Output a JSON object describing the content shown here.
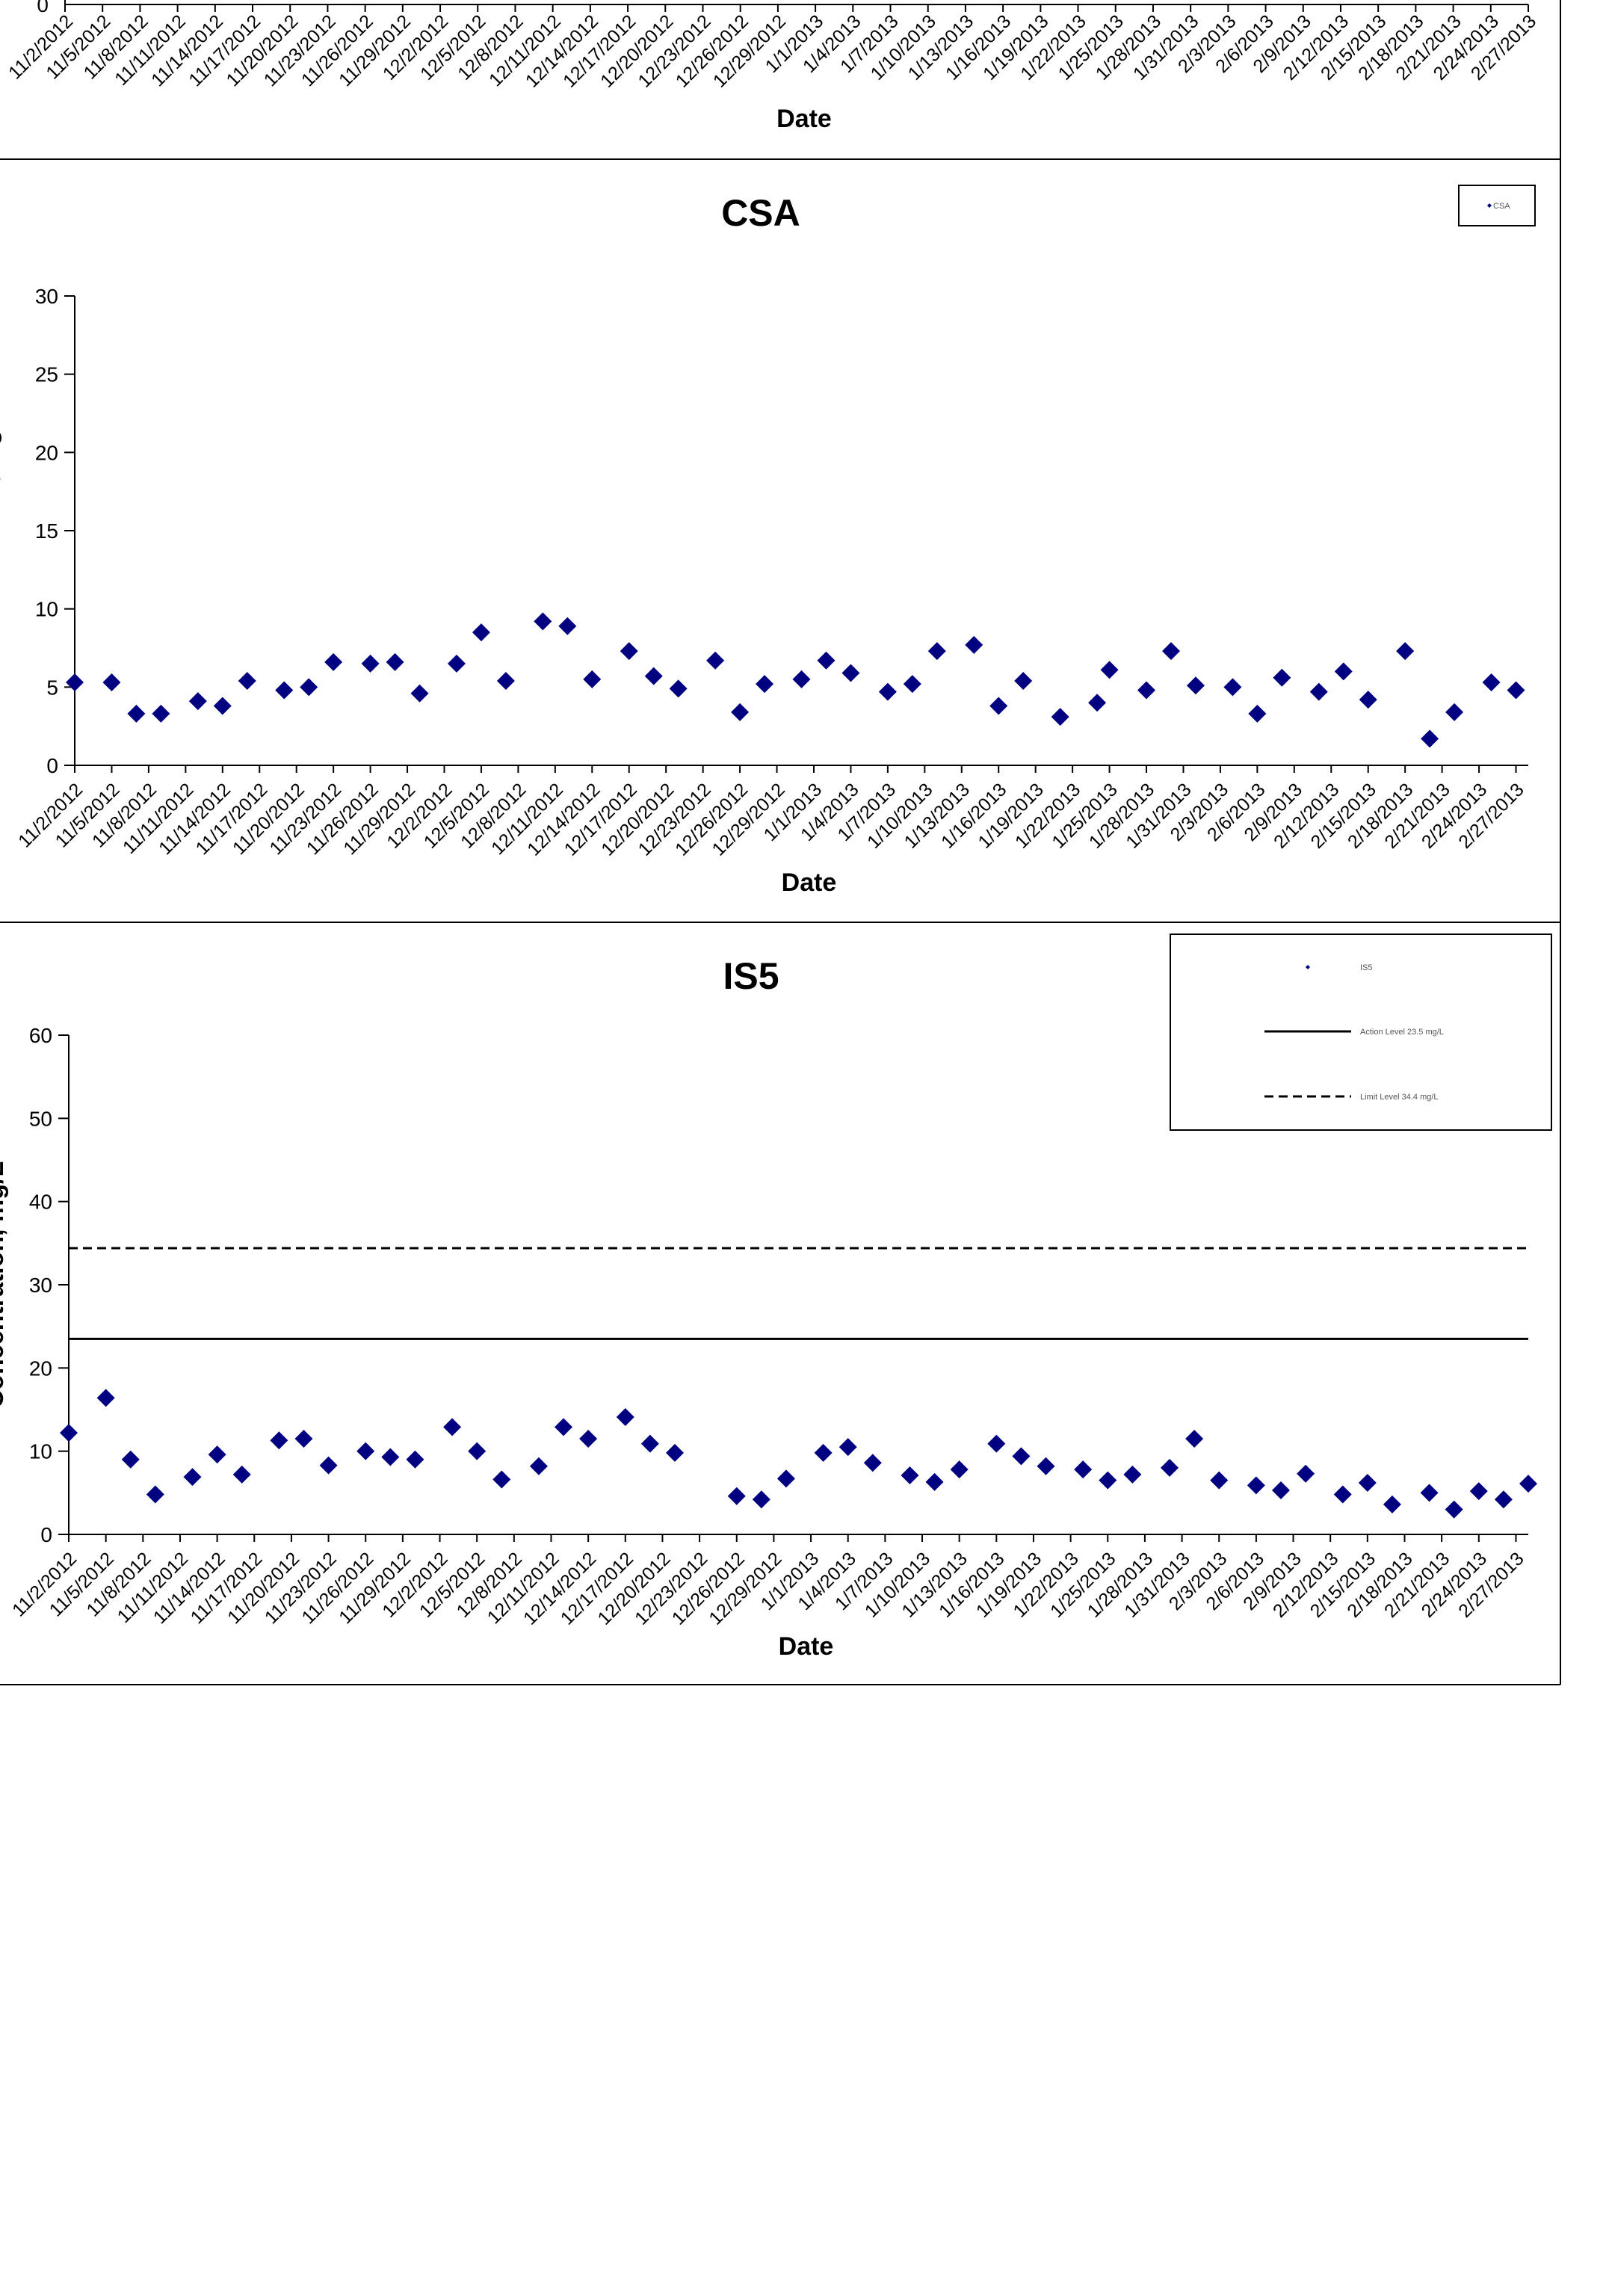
{
  "colors": {
    "marker": "#000080",
    "axis": "#000000",
    "frame": "#000000",
    "line": "#000000"
  },
  "top_fragment": {
    "xlabel": "Date",
    "ytick_label": "0",
    "categories": [
      "11/2/2012",
      "11/5/2012",
      "11/8/2012",
      "11/11/2012",
      "11/14/2012",
      "11/17/2012",
      "11/20/2012",
      "11/23/2012",
      "11/26/2012",
      "11/29/2012",
      "12/2/2012",
      "12/5/2012",
      "12/8/2012",
      "12/11/2012",
      "12/14/2012",
      "12/17/2012",
      "12/20/2012",
      "12/23/2012",
      "12/26/2012",
      "12/29/2012",
      "1/1/2013",
      "1/4/2013",
      "1/7/2013",
      "1/10/2013",
      "1/13/2013",
      "1/16/2013",
      "1/19/2013",
      "1/22/2013",
      "1/25/2013",
      "1/28/2013",
      "1/31/2013",
      "2/3/2013",
      "2/6/2013",
      "2/9/2013",
      "2/12/2013",
      "2/15/2013",
      "2/18/2013",
      "2/21/2013",
      "2/24/2013",
      "2/27/2013"
    ]
  },
  "chart_data": [
    {
      "type": "scatter",
      "title": "CSA",
      "xlabel": "Date",
      "ylabel": "Concentration, mg/L",
      "ylim": [
        0,
        30
      ],
      "yticks": [
        0,
        5,
        10,
        15,
        20,
        25,
        30
      ],
      "grid": false,
      "legend_position": "top-right",
      "categories": [
        "11/2/2012",
        "11/5/2012",
        "11/8/2012",
        "11/11/2012",
        "11/14/2012",
        "11/17/2012",
        "11/20/2012",
        "11/23/2012",
        "11/26/2012",
        "11/29/2012",
        "12/2/2012",
        "12/5/2012",
        "12/8/2012",
        "12/11/2012",
        "12/14/2012",
        "12/17/2012",
        "12/20/2012",
        "12/23/2012",
        "12/26/2012",
        "12/29/2012",
        "1/1/2013",
        "1/4/2013",
        "1/7/2013",
        "1/10/2013",
        "1/13/2013",
        "1/16/2013",
        "1/19/2013",
        "1/22/2013",
        "1/25/2013",
        "1/28/2013",
        "1/31/2013",
        "2/3/2013",
        "2/6/2013",
        "2/9/2013",
        "2/12/2013",
        "2/15/2013",
        "2/18/2013",
        "2/21/2013",
        "2/24/2013",
        "2/27/2013"
      ],
      "x_range": [
        "11/2/2012",
        "2/28/2013"
      ],
      "series": [
        {
          "name": "CSA",
          "marker": "diamond",
          "points": [
            [
              "11/2/2012",
              5.3
            ],
            [
              "11/5/2012",
              5.3
            ],
            [
              "11/7/2012",
              3.3
            ],
            [
              "11/9/2012",
              3.3
            ],
            [
              "11/12/2012",
              4.1
            ],
            [
              "11/14/2012",
              3.8
            ],
            [
              "11/16/2012",
              5.4
            ],
            [
              "11/19/2012",
              4.8
            ],
            [
              "11/21/2012",
              5.0
            ],
            [
              "11/23/2012",
              6.6
            ],
            [
              "11/26/2012",
              6.5
            ],
            [
              "11/28/2012",
              6.6
            ],
            [
              "11/30/2012",
              4.6
            ],
            [
              "12/3/2012",
              6.5
            ],
            [
              "12/5/2012",
              8.5
            ],
            [
              "12/7/2012",
              5.4
            ],
            [
              "12/10/2012",
              9.2
            ],
            [
              "12/12/2012",
              8.9
            ],
            [
              "12/14/2012",
              5.5
            ],
            [
              "12/17/2012",
              7.3
            ],
            [
              "12/19/2012",
              5.7
            ],
            [
              "12/21/2012",
              4.9
            ],
            [
              "12/24/2012",
              6.7
            ],
            [
              "12/26/2012",
              3.4
            ],
            [
              "12/28/2012",
              5.2
            ],
            [
              "12/31/2012",
              5.5
            ],
            [
              "1/2/2013",
              6.7
            ],
            [
              "1/4/2013",
              5.9
            ],
            [
              "1/7/2013",
              4.7
            ],
            [
              "1/9/2013",
              5.2
            ],
            [
              "1/11/2013",
              7.3
            ],
            [
              "1/14/2013",
              7.7
            ],
            [
              "1/16/2013",
              3.8
            ],
            [
              "1/18/2013",
              5.4
            ],
            [
              "1/21/2013",
              3.1
            ],
            [
              "1/24/2013",
              4.0
            ],
            [
              "1/25/2013",
              6.1
            ],
            [
              "1/28/2013",
              4.8
            ],
            [
              "1/30/2013",
              7.3
            ],
            [
              "2/1/2013",
              5.1
            ],
            [
              "2/4/2013",
              5.0
            ],
            [
              "2/6/2013",
              3.3
            ],
            [
              "2/8/2013",
              5.6
            ],
            [
              "2/11/2013",
              4.7
            ],
            [
              "2/13/2013",
              6.0
            ],
            [
              "2/15/2013",
              4.2
            ],
            [
              "2/18/2013",
              7.3
            ],
            [
              "2/20/2013",
              1.7
            ],
            [
              "2/22/2013",
              3.4
            ],
            [
              "2/25/2013",
              5.3
            ],
            [
              "2/27/2013",
              4.8
            ]
          ]
        }
      ]
    },
    {
      "type": "scatter",
      "title": "IS5",
      "xlabel": "Date",
      "ylabel": "Concentration, mg/L",
      "ylim": [
        0,
        60
      ],
      "yticks": [
        0,
        10,
        20,
        30,
        40,
        50,
        60
      ],
      "grid": false,
      "legend_position": "top-right",
      "categories": [
        "11/2/2012",
        "11/5/2012",
        "11/8/2012",
        "11/11/2012",
        "11/14/2012",
        "11/17/2012",
        "11/20/2012",
        "11/23/2012",
        "11/26/2012",
        "11/29/2012",
        "12/2/2012",
        "12/5/2012",
        "12/8/2012",
        "12/11/2012",
        "12/14/2012",
        "12/17/2012",
        "12/20/2012",
        "12/23/2012",
        "12/26/2012",
        "12/29/2012",
        "1/1/2013",
        "1/4/2013",
        "1/7/2013",
        "1/10/2013",
        "1/13/2013",
        "1/16/2013",
        "1/19/2013",
        "1/22/2013",
        "1/25/2013",
        "1/28/2013",
        "1/31/2013",
        "2/3/2013",
        "2/6/2013",
        "2/9/2013",
        "2/12/2013",
        "2/15/2013",
        "2/18/2013",
        "2/21/2013",
        "2/24/2013",
        "2/27/2013"
      ],
      "x_range": [
        "11/2/2012",
        "2/28/2013"
      ],
      "series": [
        {
          "name": "IS5",
          "marker": "diamond",
          "points": [
            [
              "11/2/2012",
              12.2
            ],
            [
              "11/5/2012",
              16.4
            ],
            [
              "11/7/2012",
              9.0
            ],
            [
              "11/9/2012",
              4.8
            ],
            [
              "11/12/2012",
              6.9
            ],
            [
              "11/14/2012",
              9.6
            ],
            [
              "11/16/2012",
              7.2
            ],
            [
              "11/19/2012",
              11.3
            ],
            [
              "11/21/2012",
              11.5
            ],
            [
              "11/23/2012",
              8.3
            ],
            [
              "11/26/2012",
              10.0
            ],
            [
              "11/28/2012",
              9.3
            ],
            [
              "11/30/2012",
              9.0
            ],
            [
              "12/3/2012",
              12.9
            ],
            [
              "12/5/2012",
              10.0
            ],
            [
              "12/7/2012",
              6.6
            ],
            [
              "12/10/2012",
              8.2
            ],
            [
              "12/12/2012",
              12.9
            ],
            [
              "12/14/2012",
              11.5
            ],
            [
              "12/17/2012",
              14.1
            ],
            [
              "12/19/2012",
              10.9
            ],
            [
              "12/21/2012",
              9.8
            ],
            [
              "12/26/2012",
              4.6
            ],
            [
              "12/28/2012",
              4.2
            ],
            [
              "12/30/2012",
              6.7
            ],
            [
              "1/2/2013",
              9.8
            ],
            [
              "1/4/2013",
              10.5
            ],
            [
              "1/6/2013",
              8.6
            ],
            [
              "1/9/2013",
              7.1
            ],
            [
              "1/11/2013",
              6.3
            ],
            [
              "1/13/2013",
              7.8
            ],
            [
              "1/16/2013",
              10.9
            ],
            [
              "1/18/2013",
              9.4
            ],
            [
              "1/20/2013",
              8.2
            ],
            [
              "1/23/2013",
              7.8
            ],
            [
              "1/25/2013",
              6.5
            ],
            [
              "1/27/2013",
              7.2
            ],
            [
              "1/30/2013",
              8.0
            ],
            [
              "2/1/2013",
              11.5
            ],
            [
              "2/3/2013",
              6.5
            ],
            [
              "2/6/2013",
              5.9
            ],
            [
              "2/8/2013",
              5.3
            ],
            [
              "2/10/2013",
              7.3
            ],
            [
              "2/13/2013",
              4.8
            ],
            [
              "2/15/2013",
              6.2
            ],
            [
              "2/17/2013",
              3.6
            ],
            [
              "2/20/2013",
              5.0
            ],
            [
              "2/22/2013",
              3.0
            ],
            [
              "2/24/2013",
              5.2
            ],
            [
              "2/26/2013",
              4.2
            ],
            [
              "2/28/2013",
              6.1
            ]
          ]
        },
        {
          "name": "Action Level  23.5  mg/L",
          "type": "hline",
          "value": 23.5,
          "style": "solid"
        },
        {
          "name": "Limit Level  34.4  mg/L",
          "type": "hline",
          "value": 34.4,
          "style": "dashed"
        }
      ]
    }
  ]
}
